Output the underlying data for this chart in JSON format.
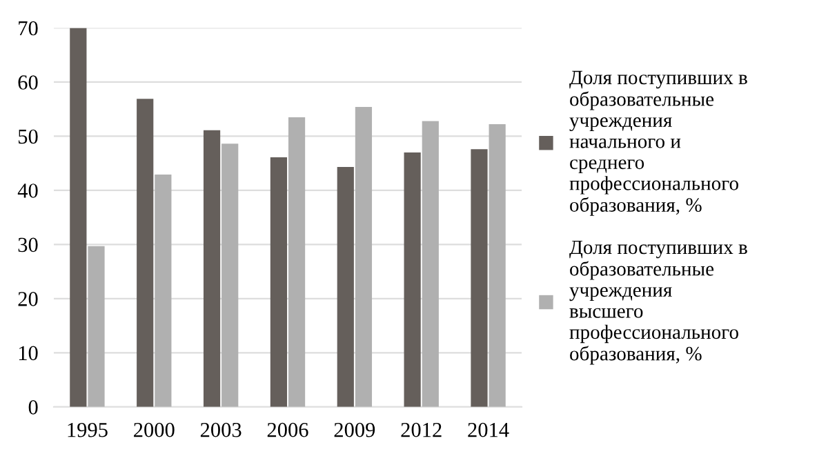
{
  "chart_data": {
    "type": "bar",
    "categories": [
      "1995",
      "2000",
      "2003",
      "2006",
      "2009",
      "2012",
      "2014"
    ],
    "series": [
      {
        "name": "Доля поступивших в\nобразовательные\nучреждения\nначального и\nсреднего\nпрофессионального\nобразования, %",
        "color": "#655f5b",
        "values": [
          70,
          56.9,
          51.1,
          46.1,
          44.3,
          47.0,
          47.6
        ]
      },
      {
        "name": "Доля поступивших в\nобразовательные\nучреждения\nвысшего\nпрофессионального\nобразования, %",
        "color": "#b0b0b0",
        "values": [
          29.7,
          42.9,
          48.6,
          53.5,
          55.4,
          52.8,
          52.2
        ]
      }
    ],
    "ylim": [
      0,
      70
    ],
    "yticks": [
      0,
      10,
      20,
      30,
      40,
      50,
      60,
      70
    ],
    "grid": "y",
    "legend": "right"
  }
}
